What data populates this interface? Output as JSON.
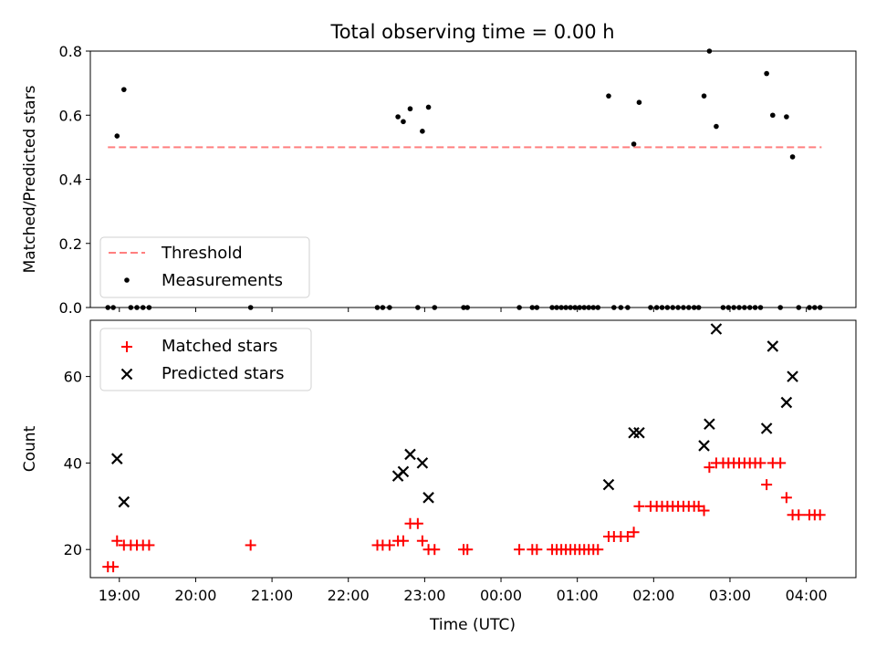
{
  "figure": {
    "title": "Total observing time = 0.00 h",
    "xlabel": "Time (UTC)"
  },
  "chart_data": [
    {
      "type": "scatter",
      "ylabel": "Matched/Predicted stars",
      "ylim": [
        0,
        0.8
      ],
      "yticks": [
        0.0,
        0.2,
        0.4,
        0.6,
        0.8
      ],
      "ytick_labels": [
        "0.0",
        "0.2",
        "0.4",
        "0.6",
        "0.8"
      ],
      "xlim": [
        18.62,
        28.65
      ],
      "xticks": [
        19,
        20,
        21,
        22,
        23,
        24,
        25,
        26,
        27,
        28
      ],
      "xtick_labels": [
        "19:00",
        "20:00",
        "21:00",
        "22:00",
        "23:00",
        "00:00",
        "01:00",
        "02:00",
        "03:00",
        "04:00"
      ],
      "legend": [
        "Threshold",
        "Measurements"
      ],
      "legend_position": "lower-left",
      "threshold": {
        "name": "Threshold",
        "value": 0.5,
        "x_range": [
          18.85,
          28.2
        ],
        "color": "#ff7f7f"
      },
      "series": [
        {
          "name": "Measurements",
          "color": "#000000",
          "x": [
            18.97,
            19.06,
            18.85,
            18.92,
            19.15,
            19.23,
            19.31,
            19.39,
            20.72,
            22.38,
            22.45,
            22.54,
            22.65,
            22.72,
            22.81,
            22.91,
            22.97,
            23.05,
            23.13,
            23.51,
            23.56,
            24.24,
            24.41,
            24.47,
            24.67,
            24.73,
            24.79,
            24.85,
            24.91,
            24.97,
            25.03,
            25.09,
            25.15,
            25.21,
            25.27,
            25.41,
            25.48,
            25.57,
            25.66,
            25.74,
            25.81,
            25.96,
            26.04,
            26.11,
            26.18,
            26.25,
            26.32,
            26.39,
            26.46,
            26.53,
            26.59,
            26.66,
            26.73,
            26.82,
            26.91,
            26.98,
            27.05,
            27.12,
            27.19,
            27.26,
            27.33,
            27.4,
            27.48,
            27.56,
            27.66,
            27.74,
            27.82,
            27.9,
            28.04,
            28.11,
            28.18
          ],
          "y": [
            0.535,
            0.68,
            0,
            0,
            0,
            0,
            0,
            0,
            0,
            0,
            0,
            0,
            0.595,
            0.58,
            0.62,
            0,
            0.55,
            0.625,
            0,
            0,
            0,
            0,
            0,
            0,
            0,
            0,
            0,
            0,
            0,
            0,
            0,
            0,
            0,
            0,
            0,
            0.66,
            0,
            0,
            0,
            0.51,
            0.64,
            0,
            0,
            0,
            0,
            0,
            0,
            0,
            0,
            0,
            0,
            0.66,
            0.8,
            0.565,
            0,
            0,
            0,
            0,
            0,
            0,
            0,
            0,
            0.73,
            0.6,
            0,
            0.595,
            0.47,
            0,
            0,
            0,
            0
          ]
        }
      ]
    },
    {
      "type": "scatter",
      "ylabel": "Count",
      "ylim": [
        13.5,
        73
      ],
      "yticks": [
        20,
        40,
        60
      ],
      "ytick_labels": [
        "20",
        "40",
        "60"
      ],
      "xlim": [
        18.62,
        28.65
      ],
      "xticks": [
        19,
        20,
        21,
        22,
        23,
        24,
        25,
        26,
        27,
        28
      ],
      "xtick_labels": [
        "19:00",
        "20:00",
        "21:00",
        "22:00",
        "23:00",
        "00:00",
        "01:00",
        "02:00",
        "03:00",
        "04:00"
      ],
      "legend": [
        "Matched stars",
        "Predicted stars"
      ],
      "legend_position": "upper-left",
      "series": [
        {
          "name": "Matched stars",
          "marker": "plus",
          "color": "#ff0000",
          "x": [
            18.85,
            18.92,
            18.97,
            19.06,
            19.15,
            19.23,
            19.31,
            19.39,
            20.72,
            22.38,
            22.45,
            22.54,
            22.65,
            22.72,
            22.81,
            22.91,
            22.97,
            23.05,
            23.13,
            23.51,
            23.56,
            24.24,
            24.41,
            24.47,
            24.67,
            24.73,
            24.79,
            24.85,
            24.91,
            24.97,
            25.03,
            25.09,
            25.15,
            25.21,
            25.27,
            25.41,
            25.48,
            25.57,
            25.66,
            25.74,
            25.81,
            25.96,
            26.04,
            26.11,
            26.18,
            26.25,
            26.32,
            26.39,
            26.46,
            26.53,
            26.59,
            26.66,
            26.73,
            26.82,
            26.91,
            26.98,
            27.05,
            27.12,
            27.19,
            27.26,
            27.33,
            27.4,
            27.48,
            27.56,
            27.66,
            27.74,
            27.82,
            27.9,
            28.04,
            28.11,
            28.18
          ],
          "y": [
            16,
            16,
            22,
            21,
            21,
            21,
            21,
            21,
            21,
            21,
            21,
            21,
            22,
            22,
            26,
            26,
            22,
            20,
            20,
            20,
            20,
            20,
            20,
            20,
            20,
            20,
            20,
            20,
            20,
            20,
            20,
            20,
            20,
            20,
            20,
            23,
            23,
            23,
            23,
            24,
            30,
            30,
            30,
            30,
            30,
            30,
            30,
            30,
            30,
            30,
            30,
            29,
            39,
            40,
            40,
            40,
            40,
            40,
            40,
            40,
            40,
            40,
            35,
            40,
            40,
            32,
            28,
            28,
            28,
            28,
            28
          ]
        },
        {
          "name": "Predicted stars",
          "marker": "x",
          "color": "#000000",
          "x": [
            18.97,
            19.06,
            22.65,
            22.72,
            22.81,
            22.97,
            23.05,
            25.41,
            25.74,
            25.81,
            26.66,
            26.73,
            26.82,
            27.48,
            27.56,
            27.74,
            27.82
          ],
          "y": [
            41,
            31,
            37,
            38,
            42,
            40,
            32,
            35,
            47,
            47,
            44,
            49,
            71,
            48,
            67,
            54,
            60
          ]
        }
      ]
    }
  ]
}
